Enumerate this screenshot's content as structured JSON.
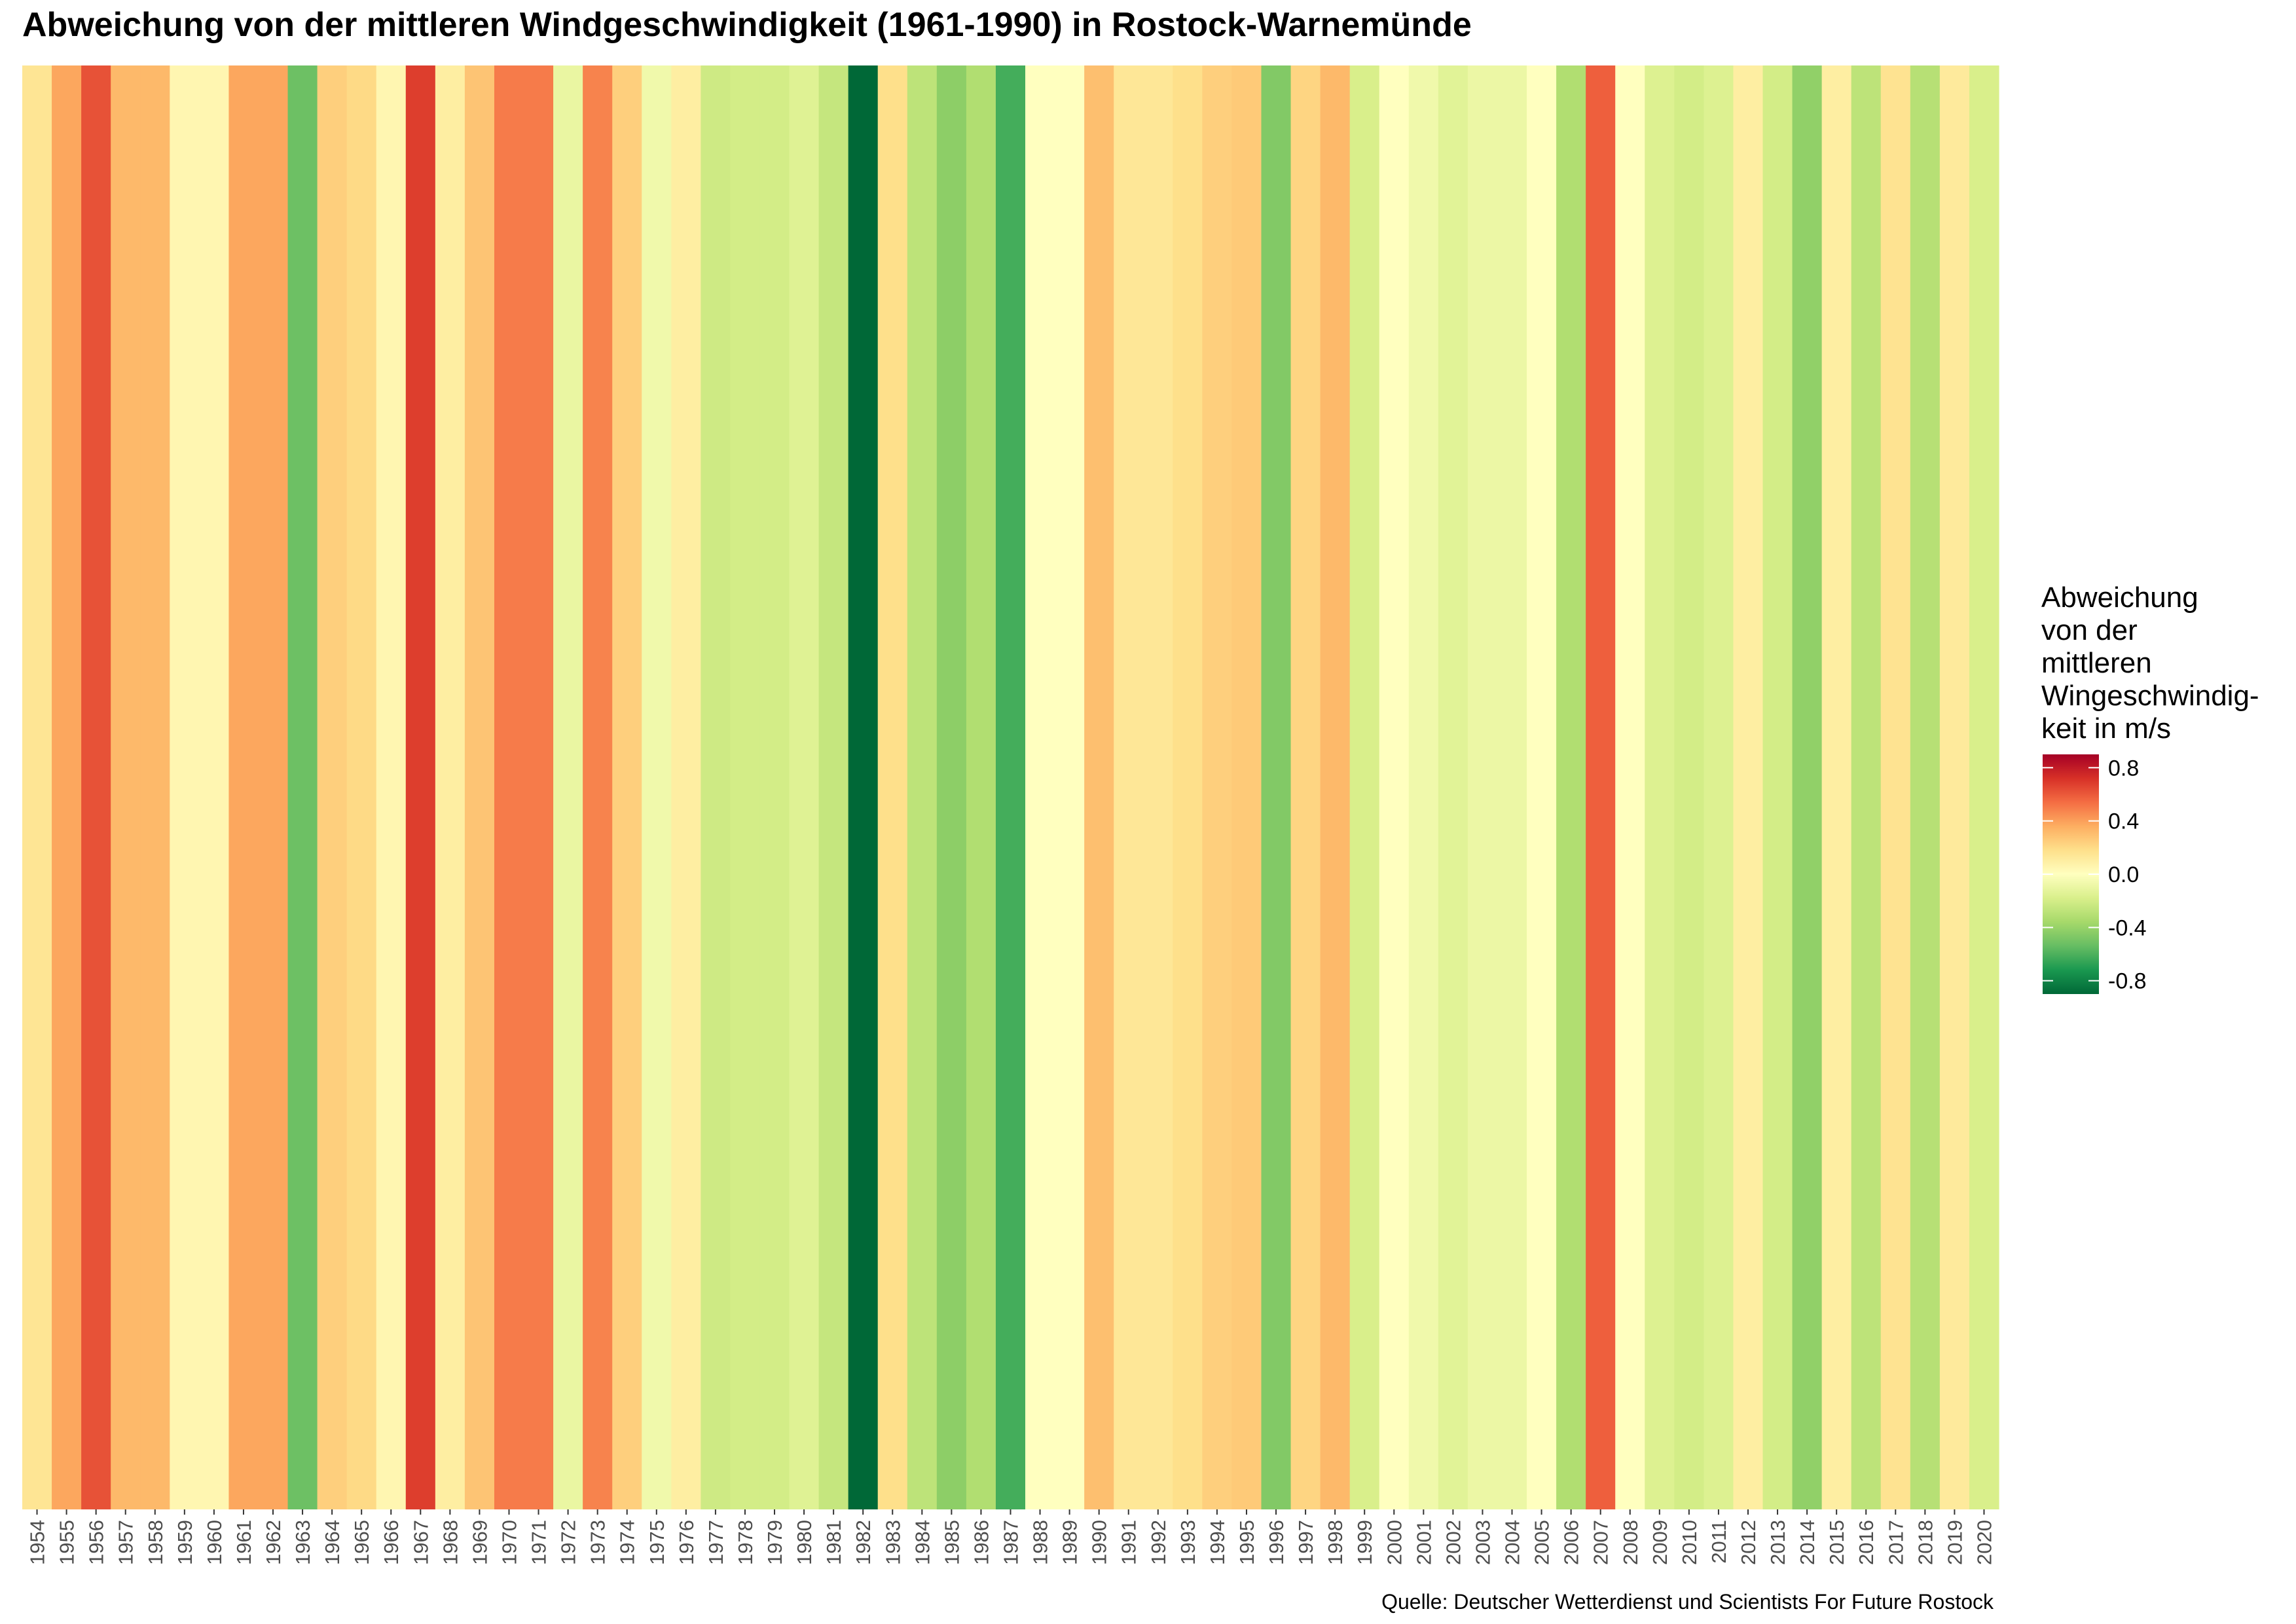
{
  "title": "Abweichung von der mittleren Windgeschwindigkeit (1961-1990) in Rostock-Warnemünde",
  "source": "Quelle: Deutscher Wetterdienst und Scientists For Future Rostock",
  "chart_data": {
    "type": "heatmap",
    "subtype": "warming-stripes",
    "x": [
      "1954",
      "1955",
      "1956",
      "1957",
      "1958",
      "1959",
      "1960",
      "1961",
      "1962",
      "1963",
      "1964",
      "1965",
      "1966",
      "1967",
      "1968",
      "1969",
      "1970",
      "1971",
      "1972",
      "1973",
      "1974",
      "1975",
      "1976",
      "1977",
      "1978",
      "1979",
      "1980",
      "1981",
      "1982",
      "1983",
      "1984",
      "1985",
      "1986",
      "1987",
      "1988",
      "1989",
      "1990",
      "1991",
      "1992",
      "1993",
      "1994",
      "1995",
      "1996",
      "1997",
      "1998",
      "1999",
      "2000",
      "2001",
      "2002",
      "2003",
      "2004",
      "2005",
      "2006",
      "2007",
      "2008",
      "2009",
      "2010",
      "2011",
      "2012",
      "2013",
      "2014",
      "2015",
      "2016",
      "2017",
      "2018",
      "2019",
      "2020"
    ],
    "values": [
      0.15,
      0.38,
      0.62,
      0.32,
      0.32,
      0.05,
      0.05,
      0.38,
      0.38,
      -0.52,
      0.24,
      0.2,
      0.05,
      0.68,
      0.1,
      0.28,
      0.5,
      0.5,
      -0.1,
      0.48,
      0.24,
      -0.07,
      0.1,
      -0.22,
      -0.2,
      -0.2,
      -0.15,
      -0.25,
      -0.9,
      0.18,
      -0.28,
      -0.43,
      -0.32,
      -0.62,
      0.0,
      0.0,
      0.3,
      0.14,
      0.14,
      0.18,
      0.24,
      0.26,
      -0.46,
      0.22,
      0.32,
      -0.18,
      0.0,
      -0.07,
      -0.14,
      -0.09,
      -0.09,
      0.0,
      -0.32,
      0.58,
      0.0,
      -0.16,
      -0.2,
      -0.16,
      0.1,
      -0.2,
      -0.42,
      0.1,
      -0.28,
      0.16,
      -0.3,
      0.12,
      -0.18
    ],
    "legend": {
      "title_lines": [
        "Abweichung",
        "von der",
        "mittleren",
        "Wingeschwindig-",
        "keit in m/s"
      ],
      "ticks": [
        "0.8",
        "0.4",
        "0.0",
        "-0.4",
        "-0.8"
      ],
      "tick_values": [
        0.8,
        0.4,
        0.0,
        -0.4,
        -0.8
      ],
      "range": [
        -0.9,
        0.9
      ],
      "colors": [
        "#006837",
        "#1a9850",
        "#66bd63",
        "#a6d96a",
        "#d9ef8b",
        "#ffffbf",
        "#fee08b",
        "#fdae61",
        "#f46d43",
        "#d73027",
        "#a50026"
      ],
      "placement": "right"
    },
    "grid": false,
    "xlabel": "",
    "ylabel": ""
  }
}
